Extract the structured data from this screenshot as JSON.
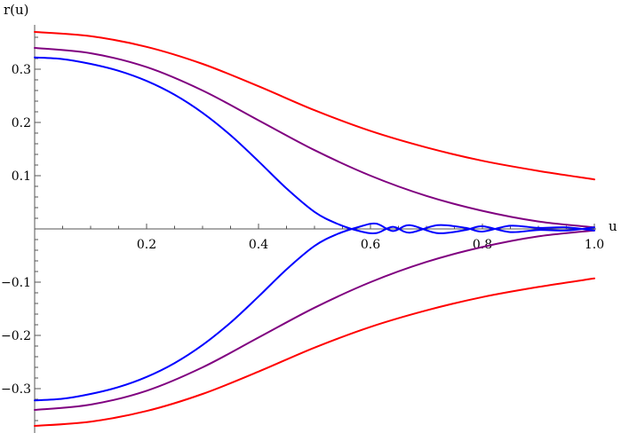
{
  "chart_data": {
    "type": "line",
    "title": "",
    "xlabel": "u",
    "ylabel": "r(u)",
    "xlim": [
      0,
      1.0
    ],
    "ylim": [
      -0.37,
      0.37
    ],
    "grid": false,
    "legend": "none",
    "x_ticks": [
      {
        "value": 0.2,
        "label": "0.2"
      },
      {
        "value": 0.4,
        "label": "0.4"
      },
      {
        "value": 0.6,
        "label": "0.6"
      },
      {
        "value": 0.8,
        "label": "0.8"
      },
      {
        "value": 1.0,
        "label": "1.0"
      }
    ],
    "y_ticks": [
      {
        "value": 0.3,
        "label": "0.3"
      },
      {
        "value": 0.2,
        "label": "0.2"
      },
      {
        "value": 0.1,
        "label": "0.1"
      },
      {
        "value": -0.1,
        "label": "−0.1"
      },
      {
        "value": -0.2,
        "label": "−0.2"
      },
      {
        "value": -0.3,
        "label": "−0.3"
      }
    ],
    "series": [
      {
        "color": "#ff0000",
        "x": [
          0.0,
          0.1,
          0.2,
          0.3,
          0.4,
          0.5,
          0.6,
          0.7,
          0.8,
          0.9,
          1.0
        ],
        "y": [
          0.37,
          0.362,
          0.342,
          0.31,
          0.268,
          0.223,
          0.184,
          0.153,
          0.128,
          0.109,
          0.093
        ]
      },
      {
        "color": "#ff0000",
        "x": [
          0.0,
          0.1,
          0.2,
          0.3,
          0.4,
          0.5,
          0.6,
          0.7,
          0.8,
          0.9,
          1.0
        ],
        "y": [
          -0.37,
          -0.362,
          -0.342,
          -0.31,
          -0.268,
          -0.223,
          -0.184,
          -0.153,
          -0.128,
          -0.109,
          -0.093
        ]
      },
      {
        "color": "#800080",
        "x": [
          0.0,
          0.1,
          0.2,
          0.3,
          0.4,
          0.5,
          0.6,
          0.7,
          0.8,
          0.9,
          1.0
        ],
        "y": [
          0.34,
          0.33,
          0.304,
          0.26,
          0.204,
          0.148,
          0.1,
          0.062,
          0.034,
          0.014,
          0.003
        ]
      },
      {
        "color": "#800080",
        "x": [
          0.0,
          0.1,
          0.2,
          0.3,
          0.4,
          0.5,
          0.6,
          0.7,
          0.8,
          0.9,
          1.0
        ],
        "y": [
          -0.34,
          -0.33,
          -0.304,
          -0.26,
          -0.204,
          -0.148,
          -0.1,
          -0.062,
          -0.034,
          -0.014,
          -0.003
        ]
      },
      {
        "color": "#0000ff",
        "x": [
          0.0,
          0.05,
          0.1,
          0.15,
          0.2,
          0.25,
          0.3,
          0.35,
          0.4,
          0.45,
          0.5,
          0.54,
          0.58,
          0.61,
          0.64,
          0.67,
          0.72,
          0.77,
          0.8,
          0.85,
          0.9,
          0.95,
          1.0
        ],
        "y": [
          0.322,
          0.319,
          0.31,
          0.297,
          0.278,
          0.252,
          0.218,
          0.176,
          0.127,
          0.076,
          0.032,
          0.01,
          -0.004,
          -0.008,
          0.004,
          -0.007,
          0.007,
          0.002,
          -0.005,
          0.006,
          0.002,
          0.003,
          -0.003
        ]
      },
      {
        "color": "#0000ff",
        "x": [
          0.0,
          0.05,
          0.1,
          0.15,
          0.2,
          0.25,
          0.3,
          0.35,
          0.4,
          0.45,
          0.5,
          0.54,
          0.58,
          0.61,
          0.64,
          0.67,
          0.72,
          0.77,
          0.8,
          0.85,
          0.9,
          0.95,
          1.0
        ],
        "y": [
          -0.322,
          -0.319,
          -0.31,
          -0.297,
          -0.278,
          -0.252,
          -0.218,
          -0.176,
          -0.127,
          -0.076,
          -0.032,
          -0.01,
          0.004,
          0.01,
          -0.004,
          0.007,
          -0.008,
          -0.002,
          0.005,
          -0.006,
          -0.002,
          -0.003,
          0.003
        ]
      }
    ]
  }
}
